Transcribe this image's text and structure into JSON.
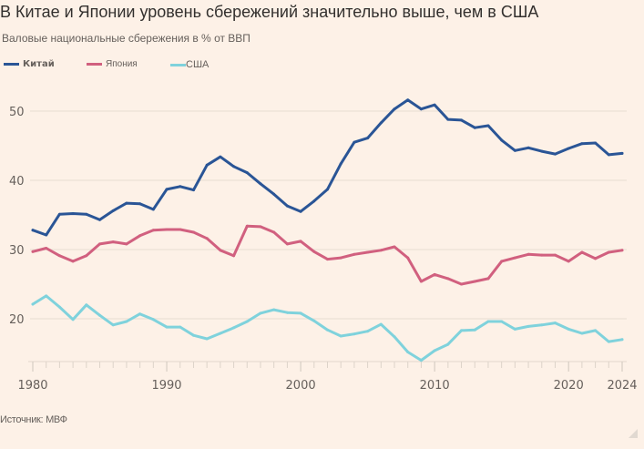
{
  "header": {
    "title": "В Китае и Японии уровень сбережений значительно выше, чем в США",
    "subtitle": "Валовые национальные сбережения в % от ВВП"
  },
  "footer": {
    "source": "Источник: МВФ"
  },
  "chart_data": {
    "type": "line",
    "title": "В Китае и Японии уровень сбережений значительно выше, чем в США",
    "subtitle": "Валовые национальные сбережения в % от ВВП",
    "xlabel": "",
    "ylabel": "",
    "x": [
      1980,
      1981,
      1982,
      1983,
      1984,
      1985,
      1986,
      1987,
      1988,
      1989,
      1990,
      1991,
      1992,
      1993,
      1994,
      1995,
      1996,
      1997,
      1998,
      1999,
      2000,
      2001,
      2002,
      2003,
      2004,
      2005,
      2006,
      2007,
      2008,
      2009,
      2010,
      2011,
      2012,
      2013,
      2014,
      2015,
      2016,
      2017,
      2018,
      2019,
      2020,
      2021,
      2022,
      2023,
      2024
    ],
    "xlim": [
      1980,
      2024
    ],
    "ylim": [
      13.5,
      55
    ],
    "xticks": [
      1980,
      1990,
      2000,
      2010,
      2020,
      2024
    ],
    "xtick_labels": [
      "1980",
      "1990",
      "2000",
      "2010",
      "2020",
      "2024"
    ],
    "yticks": [
      20,
      30,
      40,
      50
    ],
    "ytick_labels": [
      "20",
      "30",
      "40",
      "50"
    ],
    "grid": true,
    "legend_position": "top-left",
    "series": [
      {
        "name": "Китай",
        "color": "#2a5596",
        "values": [
          32.8,
          32.1,
          35.1,
          35.2,
          35.1,
          34.3,
          35.6,
          36.7,
          36.6,
          35.8,
          38.7,
          39.1,
          38.6,
          42.2,
          43.4,
          42.0,
          41.1,
          39.5,
          38.0,
          36.3,
          35.5,
          37.0,
          38.7,
          42.4,
          45.5,
          46.1,
          48.3,
          50.3,
          51.6,
          50.3,
          50.9,
          48.8,
          48.7,
          47.6,
          47.9,
          45.8,
          44.3,
          44.7,
          44.2,
          43.8,
          44.6,
          45.3,
          45.4,
          43.7,
          43.9
        ]
      },
      {
        "name": "Япония",
        "color": "#d1607f",
        "values": [
          29.7,
          30.2,
          29.1,
          28.3,
          29.1,
          30.8,
          31.1,
          30.8,
          32.0,
          32.8,
          32.9,
          32.9,
          32.5,
          31.6,
          29.9,
          29.1,
          33.4,
          33.3,
          32.5,
          30.8,
          31.2,
          29.7,
          28.6,
          28.8,
          29.3,
          29.6,
          29.9,
          30.4,
          28.8,
          25.4,
          26.4,
          25.8,
          25.0,
          25.4,
          25.8,
          28.3,
          28.8,
          29.3,
          29.2,
          29.2,
          28.3,
          29.6,
          28.7,
          29.6,
          29.9
        ]
      },
      {
        "name": "США",
        "color": "#7fd2dc",
        "values": [
          22.1,
          23.3,
          21.7,
          19.9,
          22.0,
          20.5,
          19.1,
          19.6,
          20.7,
          19.9,
          18.8,
          18.8,
          17.6,
          17.1,
          17.9,
          18.7,
          19.6,
          20.8,
          21.3,
          20.9,
          20.8,
          19.7,
          18.4,
          17.5,
          17.8,
          18.2,
          19.2,
          17.4,
          15.2,
          14.0,
          15.4,
          16.3,
          18.3,
          18.4,
          19.6,
          19.6,
          18.5,
          18.9,
          19.1,
          19.4,
          18.5,
          17.9,
          18.3,
          16.7,
          17.0
        ]
      }
    ],
    "axis_color": "#e2d8ce",
    "grid_color": "#efe4d9",
    "background": "#fdf1e7"
  }
}
